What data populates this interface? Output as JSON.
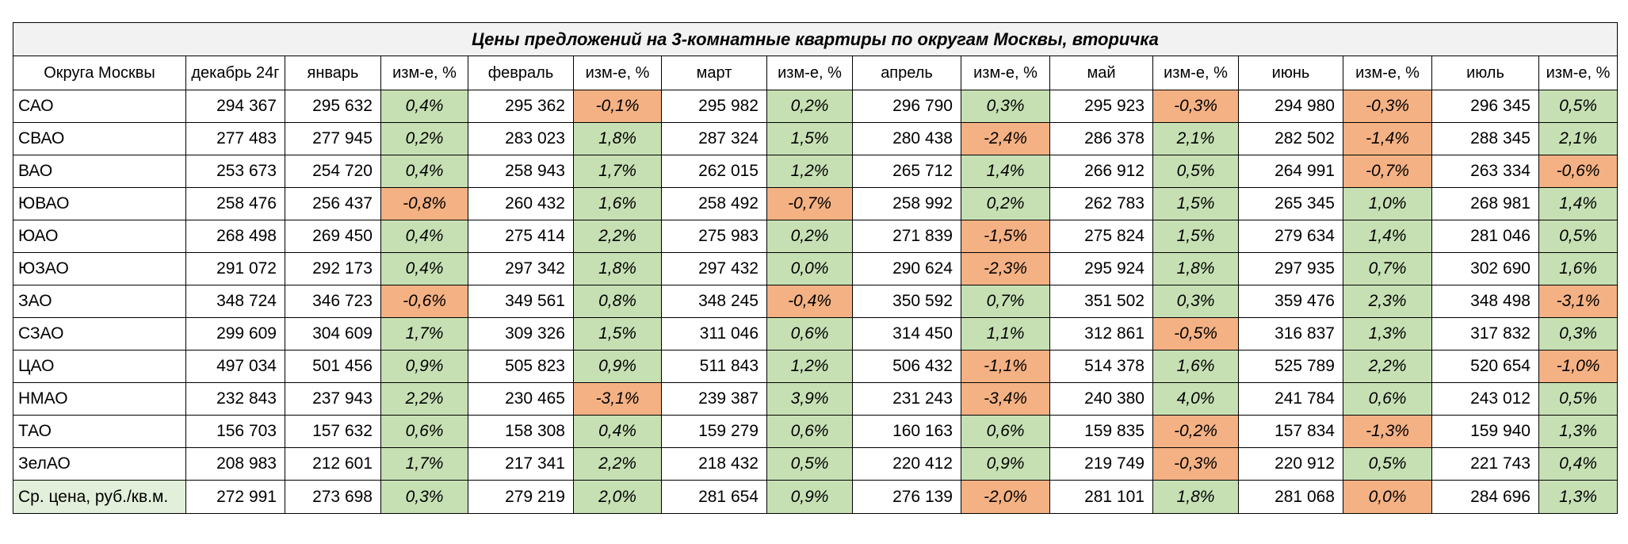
{
  "title": "Цены предложений на 3-комнатные квартиры по округам Москвы, вторичка",
  "headers": [
    "Округа Москвы",
    "декабрь 24г",
    "январь",
    "изм-е, %",
    "февраль",
    "изм-е, %",
    "март",
    "изм-е, %",
    "апрель",
    "изм-е, %",
    "май",
    "изм-е, %",
    "июнь",
    "изм-е, %",
    "июль",
    "изм-е, %"
  ],
  "rows": [
    {
      "name": "САО",
      "dec": "294 367",
      "vals": [
        {
          "price": "295 632",
          "chg": "0,4%",
          "dir": "pos"
        },
        {
          "price": "295 362",
          "chg": "-0,1%",
          "dir": "neg"
        },
        {
          "price": "295 982",
          "chg": "0,2%",
          "dir": "pos"
        },
        {
          "price": "296 790",
          "chg": "0,3%",
          "dir": "pos"
        },
        {
          "price": "295 923",
          "chg": "-0,3%",
          "dir": "neg"
        },
        {
          "price": "294 980",
          "chg": "-0,3%",
          "dir": "neg"
        },
        {
          "price": "296 345",
          "chg": "0,5%",
          "dir": "pos"
        }
      ]
    },
    {
      "name": "СВАО",
      "dec": "277 483",
      "vals": [
        {
          "price": "277 945",
          "chg": "0,2%",
          "dir": "pos"
        },
        {
          "price": "283 023",
          "chg": "1,8%",
          "dir": "pos"
        },
        {
          "price": "287 324",
          "chg": "1,5%",
          "dir": "pos"
        },
        {
          "price": "280 438",
          "chg": "-2,4%",
          "dir": "neg"
        },
        {
          "price": "286 378",
          "chg": "2,1%",
          "dir": "pos"
        },
        {
          "price": "282 502",
          "chg": "-1,4%",
          "dir": "neg"
        },
        {
          "price": "288 345",
          "chg": "2,1%",
          "dir": "pos"
        }
      ]
    },
    {
      "name": "ВАО",
      "dec": "253 673",
      "vals": [
        {
          "price": "254 720",
          "chg": "0,4%",
          "dir": "pos"
        },
        {
          "price": "258 943",
          "chg": "1,7%",
          "dir": "pos"
        },
        {
          "price": "262 015",
          "chg": "1,2%",
          "dir": "pos"
        },
        {
          "price": "265 712",
          "chg": "1,4%",
          "dir": "pos"
        },
        {
          "price": "266 912",
          "chg": "0,5%",
          "dir": "pos"
        },
        {
          "price": "264 991",
          "chg": "-0,7%",
          "dir": "neg"
        },
        {
          "price": "263 334",
          "chg": "-0,6%",
          "dir": "neg"
        }
      ]
    },
    {
      "name": "ЮВАО",
      "dec": "258 476",
      "vals": [
        {
          "price": "256 437",
          "chg": "-0,8%",
          "dir": "neg"
        },
        {
          "price": "260 432",
          "chg": "1,6%",
          "dir": "pos"
        },
        {
          "price": "258 492",
          "chg": "-0,7%",
          "dir": "neg"
        },
        {
          "price": "258 992",
          "chg": "0,2%",
          "dir": "pos"
        },
        {
          "price": "262 783",
          "chg": "1,5%",
          "dir": "pos"
        },
        {
          "price": "265 345",
          "chg": "1,0%",
          "dir": "pos"
        },
        {
          "price": "268 981",
          "chg": "1,4%",
          "dir": "pos"
        }
      ]
    },
    {
      "name": "ЮАО",
      "dec": "268 498",
      "vals": [
        {
          "price": "269 450",
          "chg": "0,4%",
          "dir": "pos"
        },
        {
          "price": "275 414",
          "chg": "2,2%",
          "dir": "pos"
        },
        {
          "price": "275 983",
          "chg": "0,2%",
          "dir": "pos"
        },
        {
          "price": "271 839",
          "chg": "-1,5%",
          "dir": "neg"
        },
        {
          "price": "275 824",
          "chg": "1,5%",
          "dir": "pos"
        },
        {
          "price": "279 634",
          "chg": "1,4%",
          "dir": "pos"
        },
        {
          "price": "281 046",
          "chg": "0,5%",
          "dir": "pos"
        }
      ]
    },
    {
      "name": "ЮЗАО",
      "dec": "291 072",
      "vals": [
        {
          "price": "292 173",
          "chg": "0,4%",
          "dir": "pos"
        },
        {
          "price": "297 342",
          "chg": "1,8%",
          "dir": "pos"
        },
        {
          "price": "297 432",
          "chg": "0,0%",
          "dir": "pos"
        },
        {
          "price": "290 624",
          "chg": "-2,3%",
          "dir": "neg"
        },
        {
          "price": "295 924",
          "chg": "1,8%",
          "dir": "pos"
        },
        {
          "price": "297 935",
          "chg": "0,7%",
          "dir": "pos"
        },
        {
          "price": "302 690",
          "chg": "1,6%",
          "dir": "pos"
        }
      ]
    },
    {
      "name": "ЗАО",
      "dec": "348 724",
      "vals": [
        {
          "price": "346 723",
          "chg": "-0,6%",
          "dir": "neg"
        },
        {
          "price": "349 561",
          "chg": "0,8%",
          "dir": "pos"
        },
        {
          "price": "348 245",
          "chg": "-0,4%",
          "dir": "neg"
        },
        {
          "price": "350 592",
          "chg": "0,7%",
          "dir": "pos"
        },
        {
          "price": "351 502",
          "chg": "0,3%",
          "dir": "pos"
        },
        {
          "price": "359 476",
          "chg": "2,3%",
          "dir": "pos"
        },
        {
          "price": "348 498",
          "chg": "-3,1%",
          "dir": "neg"
        }
      ]
    },
    {
      "name": "СЗАО",
      "dec": "299 609",
      "vals": [
        {
          "price": "304 609",
          "chg": "1,7%",
          "dir": "pos"
        },
        {
          "price": "309 326",
          "chg": "1,5%",
          "dir": "pos"
        },
        {
          "price": "311 046",
          "chg": "0,6%",
          "dir": "pos"
        },
        {
          "price": "314 450",
          "chg": "1,1%",
          "dir": "pos"
        },
        {
          "price": "312 861",
          "chg": "-0,5%",
          "dir": "neg"
        },
        {
          "price": "316 837",
          "chg": "1,3%",
          "dir": "pos"
        },
        {
          "price": "317 832",
          "chg": "0,3%",
          "dir": "pos"
        }
      ]
    },
    {
      "name": "ЦАО",
      "dec": "497 034",
      "vals": [
        {
          "price": "501 456",
          "chg": "0,9%",
          "dir": "pos"
        },
        {
          "price": "505 823",
          "chg": "0,9%",
          "dir": "pos"
        },
        {
          "price": "511 843",
          "chg": "1,2%",
          "dir": "pos"
        },
        {
          "price": "506 432",
          "chg": "-1,1%",
          "dir": "neg"
        },
        {
          "price": "514 378",
          "chg": "1,6%",
          "dir": "pos"
        },
        {
          "price": "525 789",
          "chg": "2,2%",
          "dir": "pos"
        },
        {
          "price": "520 654",
          "chg": "-1,0%",
          "dir": "neg"
        }
      ]
    },
    {
      "name": "НМАО",
      "dec": "232 843",
      "vals": [
        {
          "price": "237 943",
          "chg": "2,2%",
          "dir": "pos"
        },
        {
          "price": "230 465",
          "chg": "-3,1%",
          "dir": "neg"
        },
        {
          "price": "239 387",
          "chg": "3,9%",
          "dir": "pos"
        },
        {
          "price": "231 243",
          "chg": "-3,4%",
          "dir": "neg"
        },
        {
          "price": "240 380",
          "chg": "4,0%",
          "dir": "pos"
        },
        {
          "price": "241 784",
          "chg": "0,6%",
          "dir": "pos"
        },
        {
          "price": "243 012",
          "chg": "0,5%",
          "dir": "pos"
        }
      ]
    },
    {
      "name": "ТАО",
      "dec": "156 703",
      "vals": [
        {
          "price": "157 632",
          "chg": "0,6%",
          "dir": "pos"
        },
        {
          "price": "158 308",
          "chg": "0,4%",
          "dir": "pos"
        },
        {
          "price": "159 279",
          "chg": "0,6%",
          "dir": "pos"
        },
        {
          "price": "160 163",
          "chg": "0,6%",
          "dir": "pos"
        },
        {
          "price": "159 835",
          "chg": "-0,2%",
          "dir": "neg"
        },
        {
          "price": "157 834",
          "chg": "-1,3%",
          "dir": "neg"
        },
        {
          "price": "159 940",
          "chg": "1,3%",
          "dir": "pos"
        }
      ]
    },
    {
      "name": "ЗелАО",
      "dec": "208 983",
      "vals": [
        {
          "price": "212 601",
          "chg": "1,7%",
          "dir": "pos"
        },
        {
          "price": "217 341",
          "chg": "2,2%",
          "dir": "pos"
        },
        {
          "price": "218 432",
          "chg": "0,5%",
          "dir": "pos"
        },
        {
          "price": "220 412",
          "chg": "0,9%",
          "dir": "pos"
        },
        {
          "price": "219 749",
          "chg": "-0,3%",
          "dir": "neg"
        },
        {
          "price": "220 912",
          "chg": "0,5%",
          "dir": "pos"
        },
        {
          "price": "221 743",
          "chg": "0,4%",
          "dir": "pos"
        }
      ]
    }
  ],
  "average": {
    "name": "Ср. цена, руб./кв.м.",
    "dec": "272 991",
    "vals": [
      {
        "price": "273 698",
        "chg": "0,3%",
        "dir": "pos"
      },
      {
        "price": "279 219",
        "chg": "2,0%",
        "dir": "pos"
      },
      {
        "price": "281 654",
        "chg": "0,9%",
        "dir": "pos"
      },
      {
        "price": "276 139",
        "chg": "-2,0%",
        "dir": "neg"
      },
      {
        "price": "281 101",
        "chg": "1,8%",
        "dir": "pos"
      },
      {
        "price": "281 068",
        "chg": "0,0%",
        "dir": "neg"
      },
      {
        "price": "284 696",
        "chg": "1,3%",
        "dir": "pos"
      }
    ]
  },
  "colors": {
    "positive": "#c6e0b4",
    "negative": "#f4b183",
    "label_bg": "#e2efda",
    "title_bg": "#f2f2f2"
  }
}
